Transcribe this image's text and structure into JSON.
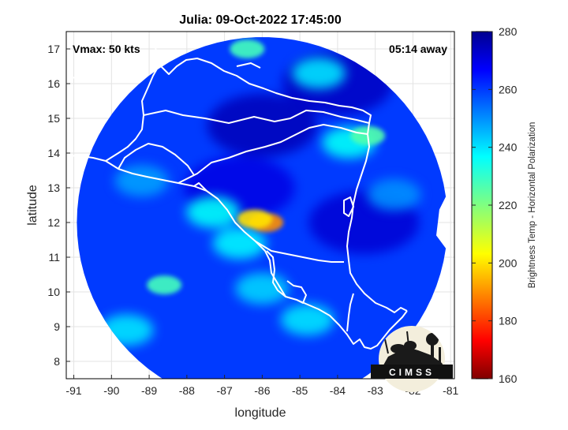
{
  "chart_data": {
    "type": "heatmap",
    "title": "Julia: 09-Oct-2022 17:45:00",
    "xlabel": "longitude",
    "ylabel": "latitude",
    "xlim": [
      -91.2,
      -80.9
    ],
    "ylim": [
      7.5,
      17.5
    ],
    "x_ticks": [
      -91,
      -90,
      -89,
      -88,
      -87,
      -86,
      -85,
      -84,
      -83,
      -82,
      -81
    ],
    "y_ticks": [
      8,
      9,
      10,
      11,
      12,
      13,
      14,
      15,
      16,
      17
    ],
    "grid": true,
    "annotations": {
      "left": "Vmax: 50 kts",
      "right": "05:14 away"
    },
    "colorbar": {
      "label": "Brightness Temp - Horizontal Polarization",
      "range": [
        160,
        280
      ],
      "ticks": [
        160,
        180,
        200,
        220,
        240,
        260,
        280
      ],
      "colormap": "jet"
    },
    "swath_center": [
      -86.0,
      12.0
    ],
    "storm_features": [
      {
        "lon": -85.9,
        "lat": 12.0,
        "value": 190
      },
      {
        "lon": -86.2,
        "lat": 12.1,
        "value": 200
      },
      {
        "lon": -86.6,
        "lat": 11.4,
        "value": 238
      },
      {
        "lon": -87.3,
        "lat": 12.3,
        "value": 236
      },
      {
        "lon": -88.6,
        "lat": 10.2,
        "value": 228
      },
      {
        "lon": -86.0,
        "lat": 10.1,
        "value": 242
      },
      {
        "lon": -84.8,
        "lat": 9.2,
        "value": 240
      },
      {
        "lon": -83.7,
        "lat": 14.3,
        "value": 236
      },
      {
        "lon": -83.2,
        "lat": 14.5,
        "value": 226
      },
      {
        "lon": -86.4,
        "lat": 17.0,
        "value": 228
      },
      {
        "lon": -84.5,
        "lat": 16.3,
        "value": 240
      },
      {
        "lon": -89.6,
        "lat": 8.9,
        "value": 240
      },
      {
        "lon": -82.5,
        "lat": 12.8,
        "value": 250
      },
      {
        "lon": -89.2,
        "lat": 13.2,
        "value": 248
      }
    ],
    "cold_areas": [
      {
        "lon": -86.0,
        "lat": 14.8,
        "value": 275
      },
      {
        "lon": -83.3,
        "lat": 12.0,
        "value": 272
      },
      {
        "lon": -84.0,
        "lat": 16.0,
        "value": 274
      },
      {
        "lon": -86.6,
        "lat": 13.0,
        "value": 270
      }
    ],
    "background_value": 260
  },
  "logo": {
    "text": "CIMSS"
  }
}
